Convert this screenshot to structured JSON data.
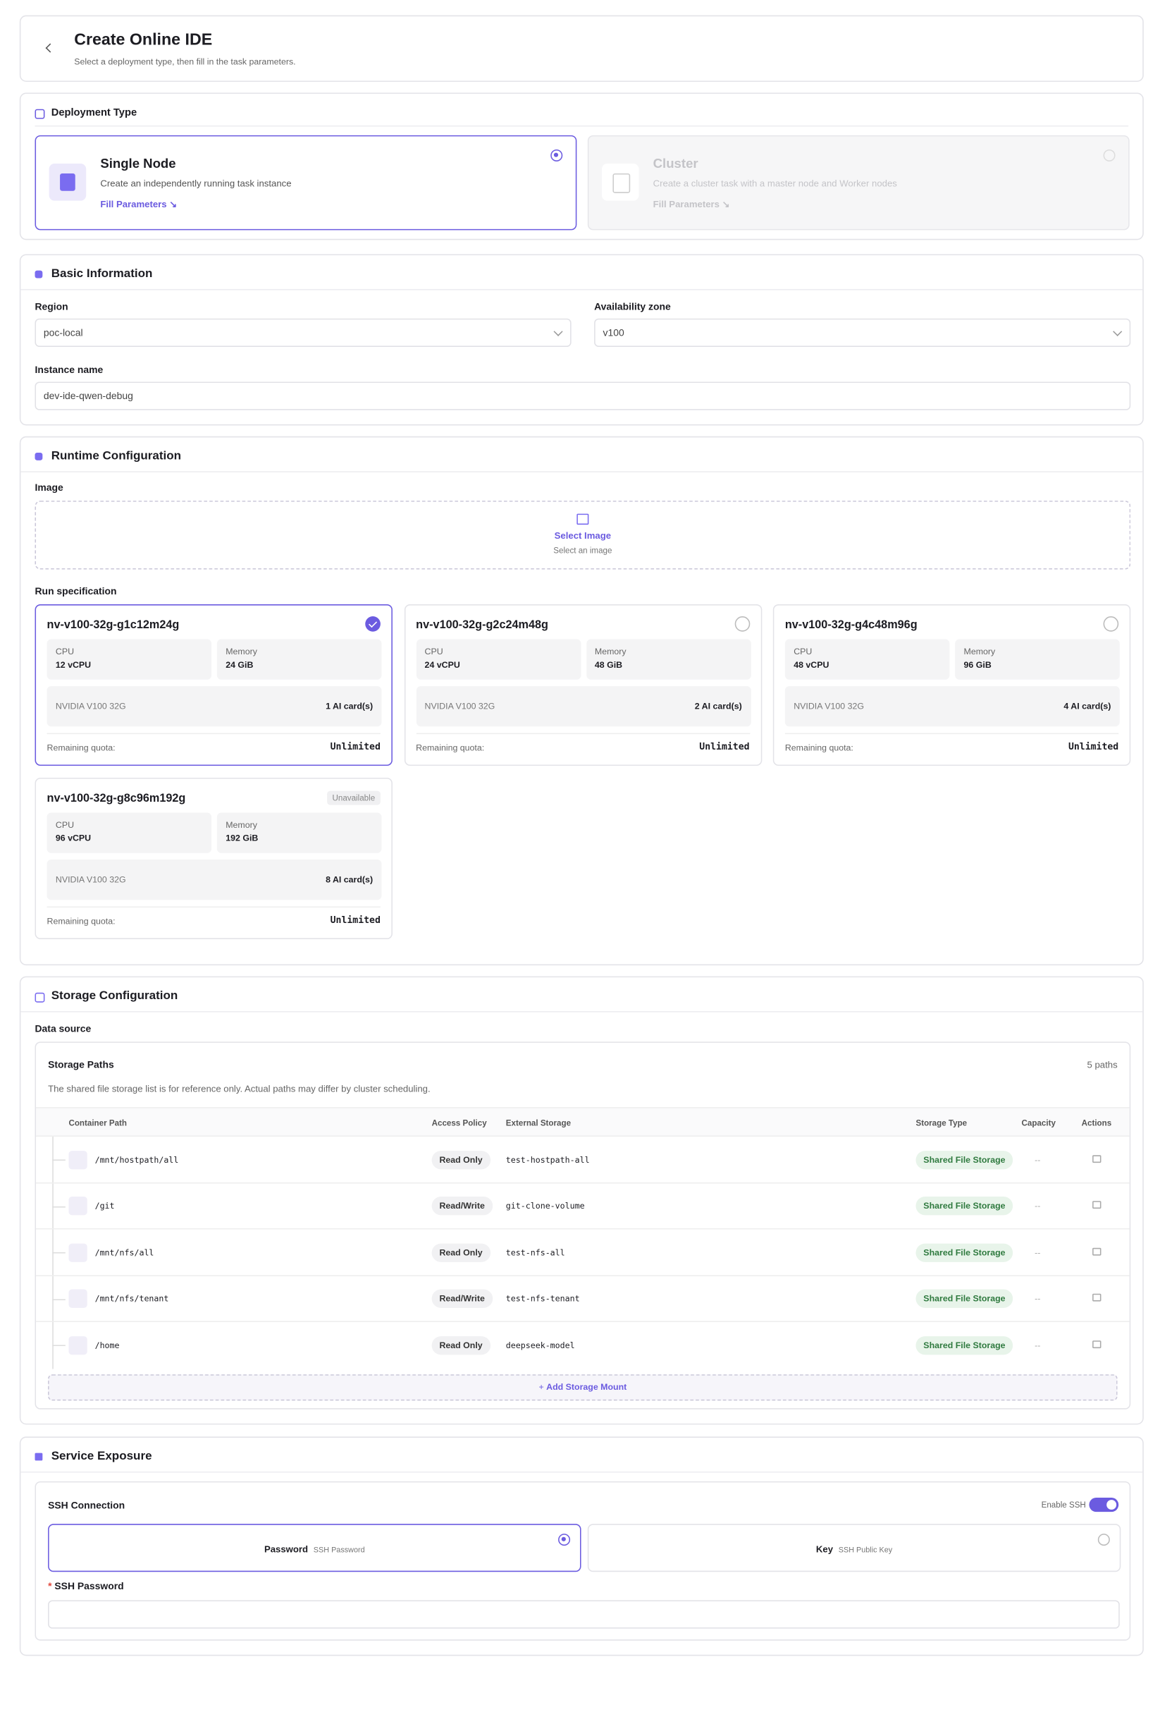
{
  "header": {
    "title": "Create Online IDE",
    "subtitle": "Select a deployment type, then fill in the task parameters."
  },
  "deployment": {
    "title": "Deployment Type",
    "options": [
      {
        "name": "Single Node",
        "description": "Create an independently running task instance",
        "link": "Fill Parameters ↘",
        "selected": true,
        "disabled": false
      },
      {
        "name": "Cluster",
        "description": "Create a cluster task with a master node and Worker nodes",
        "link": "Fill Parameters ↘",
        "selected": false,
        "disabled": true
      }
    ]
  },
  "basic": {
    "title": "Basic Information",
    "region_label": "Region",
    "region": "poc-local",
    "zone_label": "Availability zone",
    "zone": "v100",
    "instance_label": "Instance name",
    "instance": "dev-ide-qwen-debug"
  },
  "runtime": {
    "title": "Runtime Configuration",
    "image_label": "Image",
    "image_action": "Select Image",
    "image_hint": "Select an image",
    "spec_label": "Run specification",
    "specs": [
      {
        "name": "nv-v100-32g-g1c12m24g",
        "cpu_label": "CPU",
        "cpu": "12 vCPU",
        "memory_label": "Memory",
        "memory": "24 GiB",
        "gpu": "NVIDIA V100 32G",
        "cards": "1 AI card(s)",
        "quota_label": "Remaining quota:",
        "quota": "Unlimited",
        "selected": true
      },
      {
        "name": "nv-v100-32g-g2c24m48g",
        "cpu_label": "CPU",
        "cpu": "24 vCPU",
        "memory_label": "Memory",
        "memory": "48 GiB",
        "gpu": "NVIDIA V100 32G",
        "cards": "2 AI card(s)",
        "quota_label": "Remaining quota:",
        "quota": "Unlimited",
        "selected": false
      },
      {
        "name": "nv-v100-32g-g4c48m96g",
        "cpu_label": "CPU",
        "cpu": "48 vCPU",
        "memory_label": "Memory",
        "memory": "96 GiB",
        "gpu": "NVIDIA V100 32G",
        "cards": "4 AI card(s)",
        "quota_label": "Remaining quota:",
        "quota": "Unlimited",
        "selected": false
      },
      {
        "name": "nv-v100-32g-g8c96m192g",
        "badge": "Unavailable",
        "cpu_label": "CPU",
        "cpu": "96 vCPU",
        "memory_label": "Memory",
        "memory": "192 GiB",
        "gpu": "NVIDIA V100 32G",
        "cards": "8 AI card(s)",
        "quota_label": "Remaining quota:",
        "quota": "Unlimited",
        "selected": false
      }
    ]
  },
  "storage": {
    "title": "Storage Configuration",
    "source_label": "Data source",
    "panel_title": "Storage Paths",
    "count": "5 paths",
    "note": "The shared file storage list is for reference only. Actual paths may differ by cluster scheduling.",
    "columns": [
      "Container Path",
      "Access Policy",
      "External Storage",
      "Storage Type",
      "Capacity",
      "Actions"
    ],
    "rows": [
      [
        "/mnt/hostpath/all",
        "Read Only",
        "test-hostpath-all",
        "Shared File Storage",
        "--"
      ],
      [
        "/git",
        "Read/Write",
        "git-clone-volume",
        "Shared File Storage",
        "--"
      ],
      [
        "/mnt/nfs/all",
        "Read Only",
        "test-nfs-all",
        "Shared File Storage",
        "--"
      ],
      [
        "/mnt/nfs/tenant",
        "Read/Write",
        "test-nfs-tenant",
        "Shared File Storage",
        "--"
      ],
      [
        "/home",
        "Read Only",
        "deepseek-model",
        "Shared File Storage",
        "--"
      ]
    ],
    "add": "Add Storage Mount"
  },
  "service": {
    "title": "Service Exposure",
    "ssh_title": "SSH Connection",
    "enable_label": "Enable SSH",
    "enabled": true,
    "methods": [
      {
        "name": "Password",
        "hint": "SSH Password",
        "selected": true
      },
      {
        "name": "Key",
        "hint": "SSH Public Key",
        "selected": false
      }
    ],
    "required": "*",
    "password_label": "SSH Password"
  }
}
